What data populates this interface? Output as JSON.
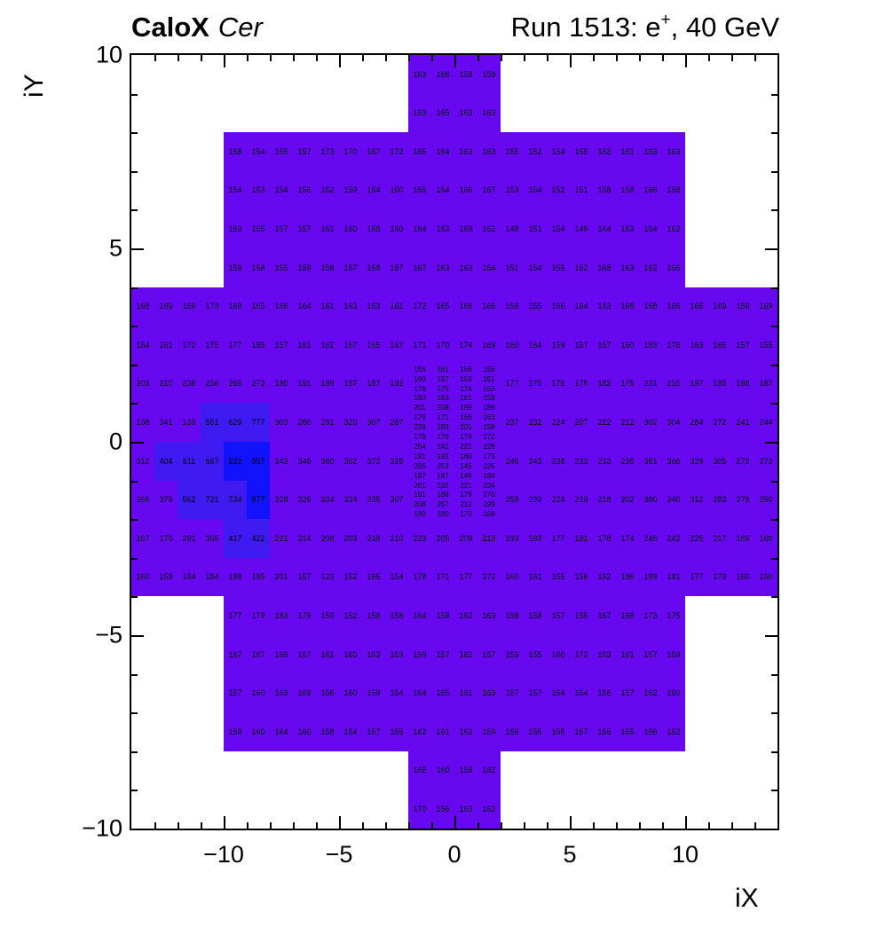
{
  "header": {
    "brand_bold": "CaloX",
    "brand_italic": "Cer",
    "run_main": "Run 1513: e",
    "run_sup": "+",
    "run_tail": ", 40 GeV"
  },
  "colors": {
    "cell_base": "#6708f0",
    "cell_hot1": "#3f1af2",
    "cell_hot2": "#1212fc",
    "frame": "#000000",
    "text": "#000000"
  },
  "chart_data": {
    "type": "heatmap",
    "title": "Run 1513: e+, 40 GeV",
    "left_label": "CaloX Cer",
    "xlabel": "iX",
    "ylabel": "iY",
    "xlim": [
      -14,
      14
    ],
    "ylim": [
      -10,
      10
    ],
    "grid": false,
    "z_thresholds": {
      "hot1": 400,
      "hot2": 850
    },
    "x_ticks": [
      {
        "value": -10,
        "label": "−10"
      },
      {
        "value": -5,
        "label": "−5"
      },
      {
        "value": 0,
        "label": "0"
      },
      {
        "value": 5,
        "label": "5"
      },
      {
        "value": 10,
        "label": "10"
      }
    ],
    "y_ticks": [
      {
        "value": 10,
        "label": "10"
      },
      {
        "value": 5,
        "label": "5"
      },
      {
        "value": 0,
        "label": "0"
      },
      {
        "value": -5,
        "label": "−5"
      },
      {
        "value": -10,
        "label": "−10"
      }
    ],
    "regions": [
      {
        "name": "top-cap",
        "x_start": -2,
        "y_top": 10,
        "cell_w": 1,
        "cell_h": 1,
        "rows": [
          [
            163,
            166,
            159,
            159
          ],
          [
            163,
            165,
            163,
            163
          ]
        ]
      },
      {
        "name": "upper-band",
        "x_start": -10,
        "y_top": 8,
        "cell_w": 1,
        "cell_h": 1,
        "rows": [
          [
            158,
            154,
            155,
            157,
            173,
            170,
            167,
            172,
            165,
            164,
            163,
            163,
            155,
            152,
            154,
            155,
            163,
            161,
            163,
            163
          ],
          [
            154,
            153,
            154,
            156,
            162,
            159,
            164,
            160,
            165,
            164,
            166,
            167,
            153,
            154,
            152,
            151,
            158,
            158,
            166,
            158
          ],
          [
            159,
            155,
            157,
            157,
            161,
            160,
            158,
            160,
            164,
            163,
            169,
            162,
            148,
            151,
            154,
            149,
            164,
            163,
            164,
            162
          ],
          [
            159,
            158,
            155,
            159,
            158,
            157,
            158,
            157,
            167,
            163,
            163,
            164,
            151,
            154,
            155,
            152,
            168,
            163,
            162,
            166
          ]
        ]
      },
      {
        "name": "mid-upper-rows",
        "x_start": -14,
        "y_top": 4,
        "cell_w": 1,
        "cell_h": 1,
        "rows": [
          [
            168,
            169,
            169,
            173,
            169,
            165,
            166,
            164,
            161,
            163,
            163,
            161,
            172,
            165,
            166,
            166,
            159,
            155,
            156,
            164,
            163,
            168,
            168,
            166,
            165,
            169,
            159,
            169
          ],
          [
            154,
            161,
            172,
            175,
            177,
            185,
            157,
            161,
            162,
            167,
            165,
            167,
            171,
            170,
            174,
            169,
            160,
            164,
            159,
            157,
            167,
            160,
            183,
            176,
            169,
            166,
            157,
            155
          ]
        ]
      },
      {
        "name": "mid-left-block",
        "x_start": -14,
        "y_top": 2,
        "cell_w": 1,
        "cell_h": 1,
        "rows": [
          [
            203,
            210,
            236,
            256,
            265,
            273,
            180,
            191,
            199,
            197,
            197,
            192
          ],
          [
            138,
            341,
            139,
            551,
            629,
            777,
            303,
            280,
            291,
            320,
            307,
            287
          ],
          [
            312,
            404,
            611,
            667,
            922,
            957,
            343,
            346,
            360,
            362,
            372,
            329
          ],
          [
            266,
            379,
            562,
            721,
            734,
            877,
            328,
            326,
            334,
            334,
            335,
            307
          ]
        ]
      },
      {
        "name": "center-fine-grid",
        "x_start": -2,
        "y_top": 2,
        "cell_w": 1,
        "cell_h": 0.25,
        "rows": [
          [
            156,
            161,
            156,
            156
          ],
          [
            160,
            157,
            153,
            151
          ],
          [
            176,
            175,
            174,
            163
          ],
          [
            160,
            163,
            161,
            158
          ],
          [
            201,
            208,
            189,
            189
          ],
          [
            179,
            171,
            165,
            163
          ],
          [
            226,
            183,
            201,
            198
          ],
          [
            179,
            179,
            174,
            172
          ],
          [
            254,
            242,
            221,
            228
          ],
          [
            191,
            191,
            180,
            173
          ],
          [
            285,
            253,
            145,
            225
          ],
          [
            187,
            187,
            145,
            180
          ],
          [
            261,
            235,
            221,
            234
          ],
          [
            191,
            188,
            179,
            176
          ],
          [
            208,
            257,
            212,
            199
          ],
          [
            180,
            180,
            170,
            168
          ]
        ]
      },
      {
        "name": "mid-right-block",
        "x_start": 2,
        "y_top": 2,
        "cell_w": 1,
        "cell_h": 1,
        "rows": [
          [
            177,
            175,
            175,
            175,
            182,
            175,
            231,
            215,
            197,
            195,
            198,
            187
          ],
          [
            237,
            232,
            224,
            207,
            222,
            212,
            302,
            304,
            284,
            272,
            241,
            244
          ],
          [
            246,
            243,
            238,
            223,
            233,
            235,
            381,
            366,
            329,
            305,
            273,
            273
          ],
          [
            259,
            239,
            224,
            219,
            218,
            202,
            380,
            340,
            312,
            283,
            276,
            250
          ]
        ]
      },
      {
        "name": "mid-lower-rows",
        "x_start": -14,
        "y_top": -2,
        "cell_w": 1,
        "cell_h": 1,
        "rows": [
          [
            167,
            170,
            291,
            355,
            417,
            422,
            221,
            214,
            208,
            203,
            218,
            210,
            223,
            205,
            209,
            213,
            193,
            183,
            177,
            191,
            178,
            174,
            246,
            242,
            225,
            217,
            169,
            166
          ],
          [
            160,
            159,
            184,
            184,
            188,
            195,
            201,
            157,
            123,
            152,
            165,
            154,
            178,
            171,
            177,
            172,
            160,
            161,
            155,
            156,
            162,
            186,
            189,
            181,
            177,
            179,
            160,
            160
          ]
        ]
      },
      {
        "name": "lower-band",
        "x_start": -10,
        "y_top": -4,
        "cell_w": 1,
        "cell_h": 1,
        "rows": [
          [
            177,
            179,
            183,
            179,
            159,
            162,
            158,
            158,
            164,
            159,
            162,
            163,
            158,
            158,
            157,
            155,
            167,
            168,
            173,
            175
          ],
          [
            167,
            167,
            165,
            167,
            161,
            160,
            153,
            153,
            159,
            157,
            162,
            157,
            153,
            155,
            160,
            172,
            163,
            161,
            157,
            159
          ],
          [
            157,
            160,
            163,
            169,
            156,
            160,
            159,
            154,
            164,
            165,
            161,
            163,
            157,
            157,
            154,
            154,
            156,
            157,
            162,
            160
          ],
          [
            159,
            160,
            164,
            160,
            158,
            154,
            157,
            155,
            162,
            161,
            162,
            159,
            156,
            155,
            155,
            157,
            156,
            155,
            156,
            152
          ]
        ]
      },
      {
        "name": "bottom-cap",
        "x_start": -2,
        "y_top": -8,
        "cell_w": 1,
        "cell_h": 1,
        "rows": [
          [
            165,
            160,
            159,
            162
          ],
          [
            170,
            156,
            163,
            162
          ]
        ]
      }
    ]
  }
}
